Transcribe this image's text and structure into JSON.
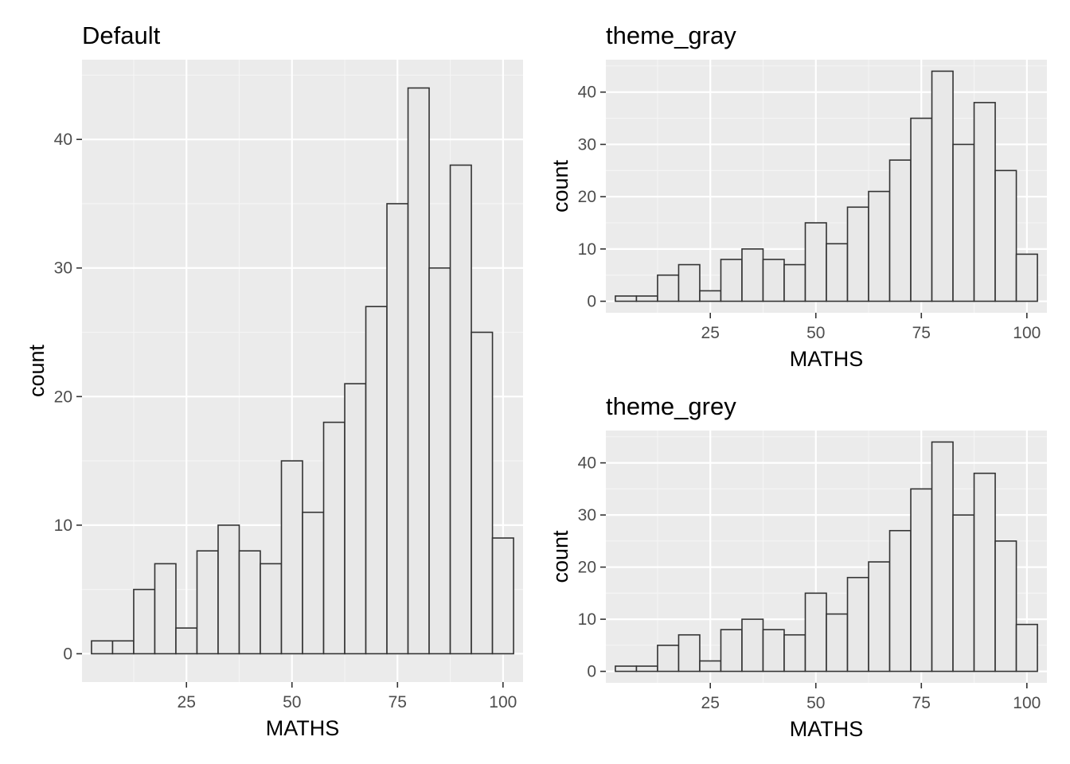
{
  "colors": {
    "panel_background": "#ebebeb",
    "grid_major": "#ffffff",
    "grid_minor": "#f5f5f5",
    "bar_fill": "#e8e8e8",
    "bar_outline": "#333333",
    "tick_mark": "#333333",
    "tick_label": "#4d4d4d",
    "title_text": "#000000"
  },
  "chart_data": [
    {
      "id": "default",
      "type": "bar",
      "subtype": "histogram",
      "title": "Default",
      "xlabel": "MATHS",
      "ylabel": "count",
      "bin_width": 5,
      "bins": [
        5,
        10,
        15,
        20,
        25,
        30,
        35,
        40,
        45,
        50,
        55,
        60,
        65,
        70,
        75,
        80,
        85,
        90,
        95,
        100
      ],
      "values": [
        1,
        1,
        5,
        7,
        2,
        8,
        10,
        8,
        7,
        15,
        11,
        18,
        21,
        27,
        35,
        44,
        30,
        38,
        25,
        9
      ],
      "xlim": [
        0.25,
        104.75
      ],
      "ylim": [
        -2.2,
        46.2
      ],
      "x_ticks": [
        25,
        50,
        75,
        100
      ],
      "x_tick_labels": [
        "25",
        "50",
        "75",
        "100"
      ],
      "y_ticks": [
        0,
        10,
        20,
        30,
        40
      ],
      "y_tick_labels": [
        "0",
        "10",
        "20",
        "30",
        "40"
      ],
      "grid": true
    },
    {
      "id": "theme-gray",
      "type": "bar",
      "subtype": "histogram",
      "title": "theme_gray",
      "xlabel": "MATHS",
      "ylabel": "count",
      "bin_width": 5,
      "bins": [
        5,
        10,
        15,
        20,
        25,
        30,
        35,
        40,
        45,
        50,
        55,
        60,
        65,
        70,
        75,
        80,
        85,
        90,
        95,
        100
      ],
      "values": [
        1,
        1,
        5,
        7,
        2,
        8,
        10,
        8,
        7,
        15,
        11,
        18,
        21,
        27,
        35,
        44,
        30,
        38,
        25,
        9
      ],
      "xlim": [
        0.25,
        104.75
      ],
      "ylim": [
        -2.2,
        46.2
      ],
      "x_ticks": [
        25,
        50,
        75,
        100
      ],
      "x_tick_labels": [
        "25",
        "50",
        "75",
        "100"
      ],
      "y_ticks": [
        0,
        10,
        20,
        30,
        40
      ],
      "y_tick_labels": [
        "0",
        "10",
        "20",
        "30",
        "40"
      ],
      "grid": true
    },
    {
      "id": "theme-grey",
      "type": "bar",
      "subtype": "histogram",
      "title": "theme_grey",
      "xlabel": "MATHS",
      "ylabel": "count",
      "bin_width": 5,
      "bins": [
        5,
        10,
        15,
        20,
        25,
        30,
        35,
        40,
        45,
        50,
        55,
        60,
        65,
        70,
        75,
        80,
        85,
        90,
        95,
        100
      ],
      "values": [
        1,
        1,
        5,
        7,
        2,
        8,
        10,
        8,
        7,
        15,
        11,
        18,
        21,
        27,
        35,
        44,
        30,
        38,
        25,
        9
      ],
      "xlim": [
        0.25,
        104.75
      ],
      "ylim": [
        -2.2,
        46.2
      ],
      "x_ticks": [
        25,
        50,
        75,
        100
      ],
      "x_tick_labels": [
        "25",
        "50",
        "75",
        "100"
      ],
      "y_ticks": [
        0,
        10,
        20,
        30,
        40
      ],
      "y_tick_labels": [
        "0",
        "10",
        "20",
        "30",
        "40"
      ],
      "grid": true
    }
  ]
}
